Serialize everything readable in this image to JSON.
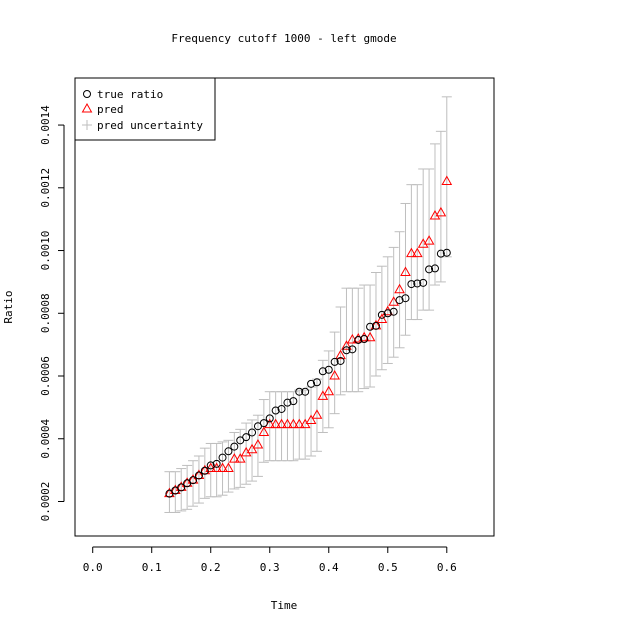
{
  "chart_data": {
    "type": "scatter",
    "title": "Frequency cutoff 1000 - left gmode",
    "xlabel": "Time",
    "ylabel": "Ratio",
    "xlim": [
      -0.03,
      0.68
    ],
    "ylim": [
      9e-05,
      0.00155
    ],
    "x_ticks": [
      0.0,
      0.1,
      0.2,
      0.3,
      0.4,
      0.5,
      0.6
    ],
    "x_tick_labels": [
      "0.0",
      "0.1",
      "0.2",
      "0.3",
      "0.4",
      "0.5",
      "0.6"
    ],
    "y_ticks": [
      0.0002,
      0.0004,
      0.0006,
      0.0008,
      0.001,
      0.0012,
      0.0014
    ],
    "y_tick_labels": [
      "0.0002",
      "0.0004",
      "0.0006",
      "0.0008",
      "0.0010",
      "0.0012",
      "0.0014"
    ],
    "grid": false,
    "legend_position": "top-left",
    "legend": [
      {
        "label": "true ratio",
        "marker": "circle",
        "color": "#000000"
      },
      {
        "label": "pred",
        "marker": "triangle",
        "color": "#ff0000"
      },
      {
        "label": "pred uncertainty",
        "marker": "plus",
        "color": "#bebebe"
      }
    ],
    "x": [
      0.13,
      0.14,
      0.15,
      0.16,
      0.17,
      0.18,
      0.19,
      0.2,
      0.21,
      0.22,
      0.23,
      0.24,
      0.25,
      0.26,
      0.27,
      0.28,
      0.29,
      0.3,
      0.31,
      0.32,
      0.33,
      0.34,
      0.35,
      0.36,
      0.37,
      0.38,
      0.39,
      0.4,
      0.41,
      0.42,
      0.43,
      0.44,
      0.45,
      0.46,
      0.47,
      0.48,
      0.49,
      0.5,
      0.51,
      0.52,
      0.53,
      0.54,
      0.55,
      0.56,
      0.57,
      0.58,
      0.59,
      0.6
    ],
    "series": [
      {
        "name": "true ratio",
        "marker": "circle",
        "color": "#000000",
        "values": [
          0.000225,
          0.000235,
          0.000245,
          0.000258,
          0.000268,
          0.000283,
          0.000298,
          0.000315,
          0.00032,
          0.00034,
          0.00036,
          0.000375,
          0.000395,
          0.000405,
          0.00042,
          0.00044,
          0.00045,
          0.000465,
          0.00049,
          0.000495,
          0.000515,
          0.00052,
          0.00055,
          0.00055,
          0.000575,
          0.00058,
          0.000615,
          0.00062,
          0.000645,
          0.000648,
          0.000682,
          0.000685,
          0.000715,
          0.000718,
          0.000757,
          0.00076,
          0.000795,
          0.0008,
          0.000805,
          0.000842,
          0.000848,
          0.000893,
          0.000895,
          0.000897,
          0.00094,
          0.000943,
          0.00099,
          0.000993
        ]
      },
      {
        "name": "pred",
        "marker": "triangle",
        "color": "#ff0000",
        "values": [
          0.000225,
          0.000235,
          0.000245,
          0.000258,
          0.000268,
          0.000283,
          0.000298,
          0.000305,
          0.000305,
          0.000305,
          0.000305,
          0.000335,
          0.000335,
          0.000355,
          0.000365,
          0.00038,
          0.00042,
          0.000445,
          0.000445,
          0.000445,
          0.000445,
          0.000445,
          0.000445,
          0.000445,
          0.000458,
          0.000475,
          0.000535,
          0.00055,
          0.0006,
          0.000665,
          0.000695,
          0.000715,
          0.000718,
          0.000722,
          0.000722,
          0.00076,
          0.00078,
          0.000805,
          0.000835,
          0.000875,
          0.00093,
          0.00099,
          0.00099,
          0.00102,
          0.00103,
          0.00111,
          0.00112,
          0.00122
        ]
      },
      {
        "name": "pred uncertainty",
        "marker": "errorbar",
        "color": "#bebebe",
        "lower": [
          0.000165,
          0.000165,
          0.00017,
          0.000175,
          0.000185,
          0.000195,
          0.00021,
          0.000215,
          0.000215,
          0.00022,
          0.00023,
          0.00024,
          0.000245,
          0.000255,
          0.000265,
          0.00028,
          0.000325,
          0.00033,
          0.00033,
          0.00033,
          0.00033,
          0.00033,
          0.000335,
          0.000335,
          0.000345,
          0.00036,
          0.00042,
          0.000435,
          0.00048,
          0.00054,
          0.00055,
          0.00055,
          0.00055,
          0.00056,
          0.000565,
          0.0006,
          0.00062,
          0.00064,
          0.00066,
          0.00069,
          0.00073,
          0.00078,
          0.00078,
          0.00081,
          0.00081,
          0.00089,
          0.0009,
          0.00098
        ],
        "upper": [
          0.000295,
          0.000295,
          0.000305,
          0.000315,
          0.00033,
          0.000345,
          0.00037,
          0.000385,
          0.000385,
          0.00039,
          0.000395,
          0.00042,
          0.00043,
          0.00045,
          0.00046,
          0.000475,
          0.000525,
          0.00055,
          0.00055,
          0.00055,
          0.00055,
          0.00055,
          0.000555,
          0.000555,
          0.000565,
          0.00059,
          0.00065,
          0.00068,
          0.00074,
          0.00082,
          0.00088,
          0.00088,
          0.00088,
          0.00089,
          0.00089,
          0.00093,
          0.00095,
          0.00098,
          0.00101,
          0.00106,
          0.00115,
          0.00121,
          0.00121,
          0.00126,
          0.00126,
          0.00134,
          0.00138,
          0.00149
        ]
      }
    ]
  }
}
